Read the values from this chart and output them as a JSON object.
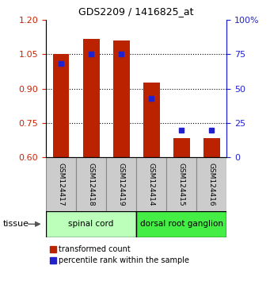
{
  "title": "GDS2209 / 1416825_at",
  "samples": [
    "GSM124417",
    "GSM124418",
    "GSM124419",
    "GSM124414",
    "GSM124415",
    "GSM124416"
  ],
  "red_values": [
    1.05,
    1.115,
    1.11,
    0.925,
    0.685,
    0.685
  ],
  "blue_values_pct": [
    68,
    75,
    75,
    43,
    20,
    20
  ],
  "ylim_left": [
    0.6,
    1.2
  ],
  "ylim_right": [
    0,
    100
  ],
  "yticks_left": [
    0.6,
    0.75,
    0.9,
    1.05,
    1.2
  ],
  "yticks_right": [
    0,
    25,
    50,
    75,
    100
  ],
  "red_color": "#bb2200",
  "blue_color": "#2222cc",
  "bar_width": 0.55,
  "baseline": 0.6,
  "tissue_groups": [
    {
      "label": "spinal cord",
      "samples_count": 3,
      "color": "#bbffbb"
    },
    {
      "label": "dorsal root ganglion",
      "samples_count": 3,
      "color": "#44ee44"
    }
  ],
  "tissue_label": "tissue",
  "legend_red": "transformed count",
  "legend_blue": "percentile rank within the sample",
  "left_tick_color": "#cc2200",
  "right_tick_color": "#2222cc",
  "sample_box_color": "#cccccc",
  "title_fontsize": 9,
  "tick_fontsize": 8,
  "label_fontsize": 7
}
